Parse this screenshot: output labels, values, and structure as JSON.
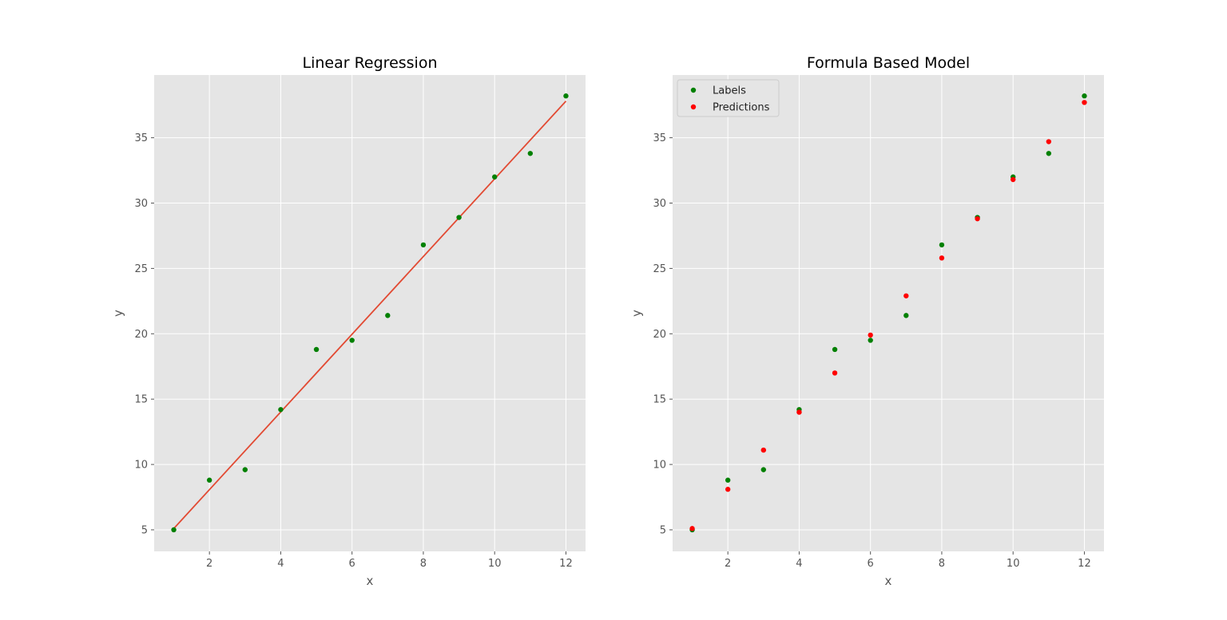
{
  "chart_data": [
    {
      "type": "scatter",
      "title": "Linear Regression",
      "xlabel": "x",
      "ylabel": "y",
      "xlim": [
        0.45,
        12.55
      ],
      "ylim": [
        3.35,
        39.8
      ],
      "xticks": [
        2,
        4,
        6,
        8,
        10,
        12
      ],
      "yticks": [
        5,
        10,
        15,
        20,
        25,
        30,
        35
      ],
      "grid": true,
      "series": [
        {
          "kind": "scatter",
          "color": "#008000",
          "x": [
            1,
            2,
            3,
            4,
            5,
            6,
            7,
            8,
            9,
            10,
            11,
            12
          ],
          "y": [
            5.0,
            8.8,
            9.6,
            14.2,
            18.8,
            19.5,
            21.4,
            26.8,
            28.9,
            32.0,
            33.8,
            38.2
          ]
        },
        {
          "kind": "line",
          "color": "#e24a33",
          "x": [
            1,
            12
          ],
          "y": [
            5.1,
            37.8
          ]
        }
      ]
    },
    {
      "type": "scatter",
      "title": "Formula Based Model",
      "xlabel": "x",
      "ylabel": "y",
      "xlim": [
        0.45,
        12.55
      ],
      "ylim": [
        3.35,
        39.8
      ],
      "xticks": [
        2,
        4,
        6,
        8,
        10,
        12
      ],
      "yticks": [
        5,
        10,
        15,
        20,
        25,
        30,
        35
      ],
      "grid": true,
      "legend": "top-left",
      "series": [
        {
          "kind": "scatter",
          "name": "Labels",
          "color": "#008000",
          "x": [
            1,
            2,
            3,
            4,
            5,
            6,
            7,
            8,
            9,
            10,
            11,
            12
          ],
          "y": [
            5.0,
            8.8,
            9.6,
            14.2,
            18.8,
            19.5,
            21.4,
            26.8,
            28.9,
            32.0,
            33.8,
            38.2
          ]
        },
        {
          "kind": "scatter",
          "name": "Predictions",
          "color": "#ff0000",
          "x": [
            1,
            2,
            3,
            4,
            5,
            6,
            7,
            8,
            9,
            10,
            11,
            12
          ],
          "y": [
            5.1,
            8.1,
            11.1,
            14.0,
            17.0,
            19.9,
            22.9,
            25.8,
            28.8,
            31.8,
            34.7,
            37.7
          ]
        }
      ]
    }
  ]
}
